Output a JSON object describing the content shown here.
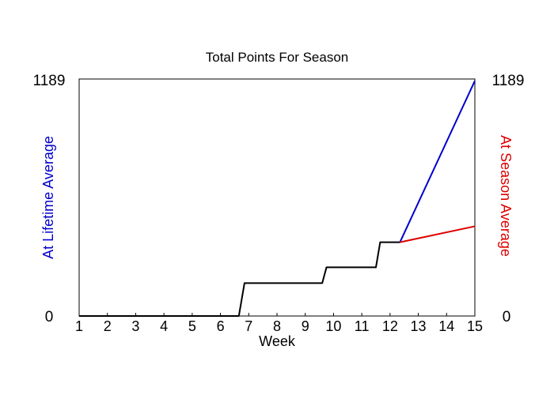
{
  "chart_data": {
    "type": "line",
    "title": "Total Points For Season",
    "xlabel": "Week",
    "ylabel_left": "At Lifetime Average",
    "ylabel_right": "At Season Average",
    "xlim": [
      1,
      15
    ],
    "ylim": [
      0,
      1189
    ],
    "x_ticks": [
      "1",
      "2",
      "3",
      "4",
      "5",
      "6",
      "7",
      "8",
      "9",
      "10",
      "11",
      "12",
      "13",
      "14",
      "15"
    ],
    "y_tick_labels_left": [
      "0",
      "1189"
    ],
    "y_tick_labels_right": [
      "0",
      "1189"
    ],
    "grid": false,
    "series": [
      {
        "role": "actual",
        "color": "#000000",
        "points": [
          [
            1,
            0
          ],
          [
            6.65,
            0
          ],
          [
            6.85,
            165
          ],
          [
            9.6,
            165
          ],
          [
            9.75,
            244
          ],
          [
            11.5,
            244
          ],
          [
            11.65,
            370
          ],
          [
            12.35,
            370
          ]
        ]
      },
      {
        "role": "projection-lifetime",
        "color": "#0000cc",
        "points": [
          [
            12.35,
            370
          ],
          [
            15,
            1180
          ]
        ]
      },
      {
        "role": "projection-season",
        "color": "#dd0000",
        "points": [
          [
            12.35,
            370
          ],
          [
            15,
            450
          ]
        ]
      }
    ]
  }
}
